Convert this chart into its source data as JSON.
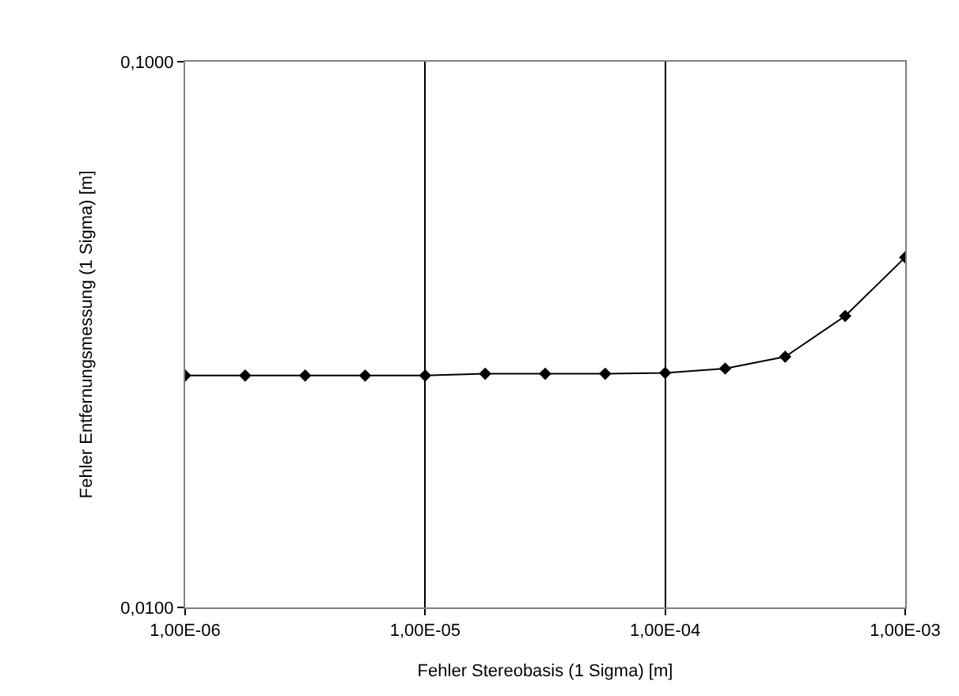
{
  "chart_data": {
    "type": "line",
    "xlabel": "Fehler Stereobasis (1 Sigma) [m]",
    "ylabel": "Fehler Entfernungsmessung (1 Sigma) [m]",
    "categories": [
      "1,00E-06",
      null,
      null,
      null,
      "1,00E-05",
      null,
      null,
      null,
      "1,00E-04",
      null,
      null,
      null,
      "1,00E-03"
    ],
    "series": [
      {
        "color": "#000000",
        "values": [
          0.0266,
          0.0266,
          0.0266,
          0.0266,
          0.0266,
          0.0268,
          0.0268,
          0.0268,
          0.0269,
          0.0274,
          0.0288,
          0.0342,
          0.0438
        ]
      }
    ],
    "log": "y",
    "ylim": [
      0.01,
      0.1
    ],
    "yticks": [
      {
        "value": 0.01,
        "label": "0,0100"
      },
      {
        "value": 0.1,
        "label": "0,1000"
      }
    ],
    "grid": "x",
    "marker": "diamond",
    "line_style": "solid"
  }
}
